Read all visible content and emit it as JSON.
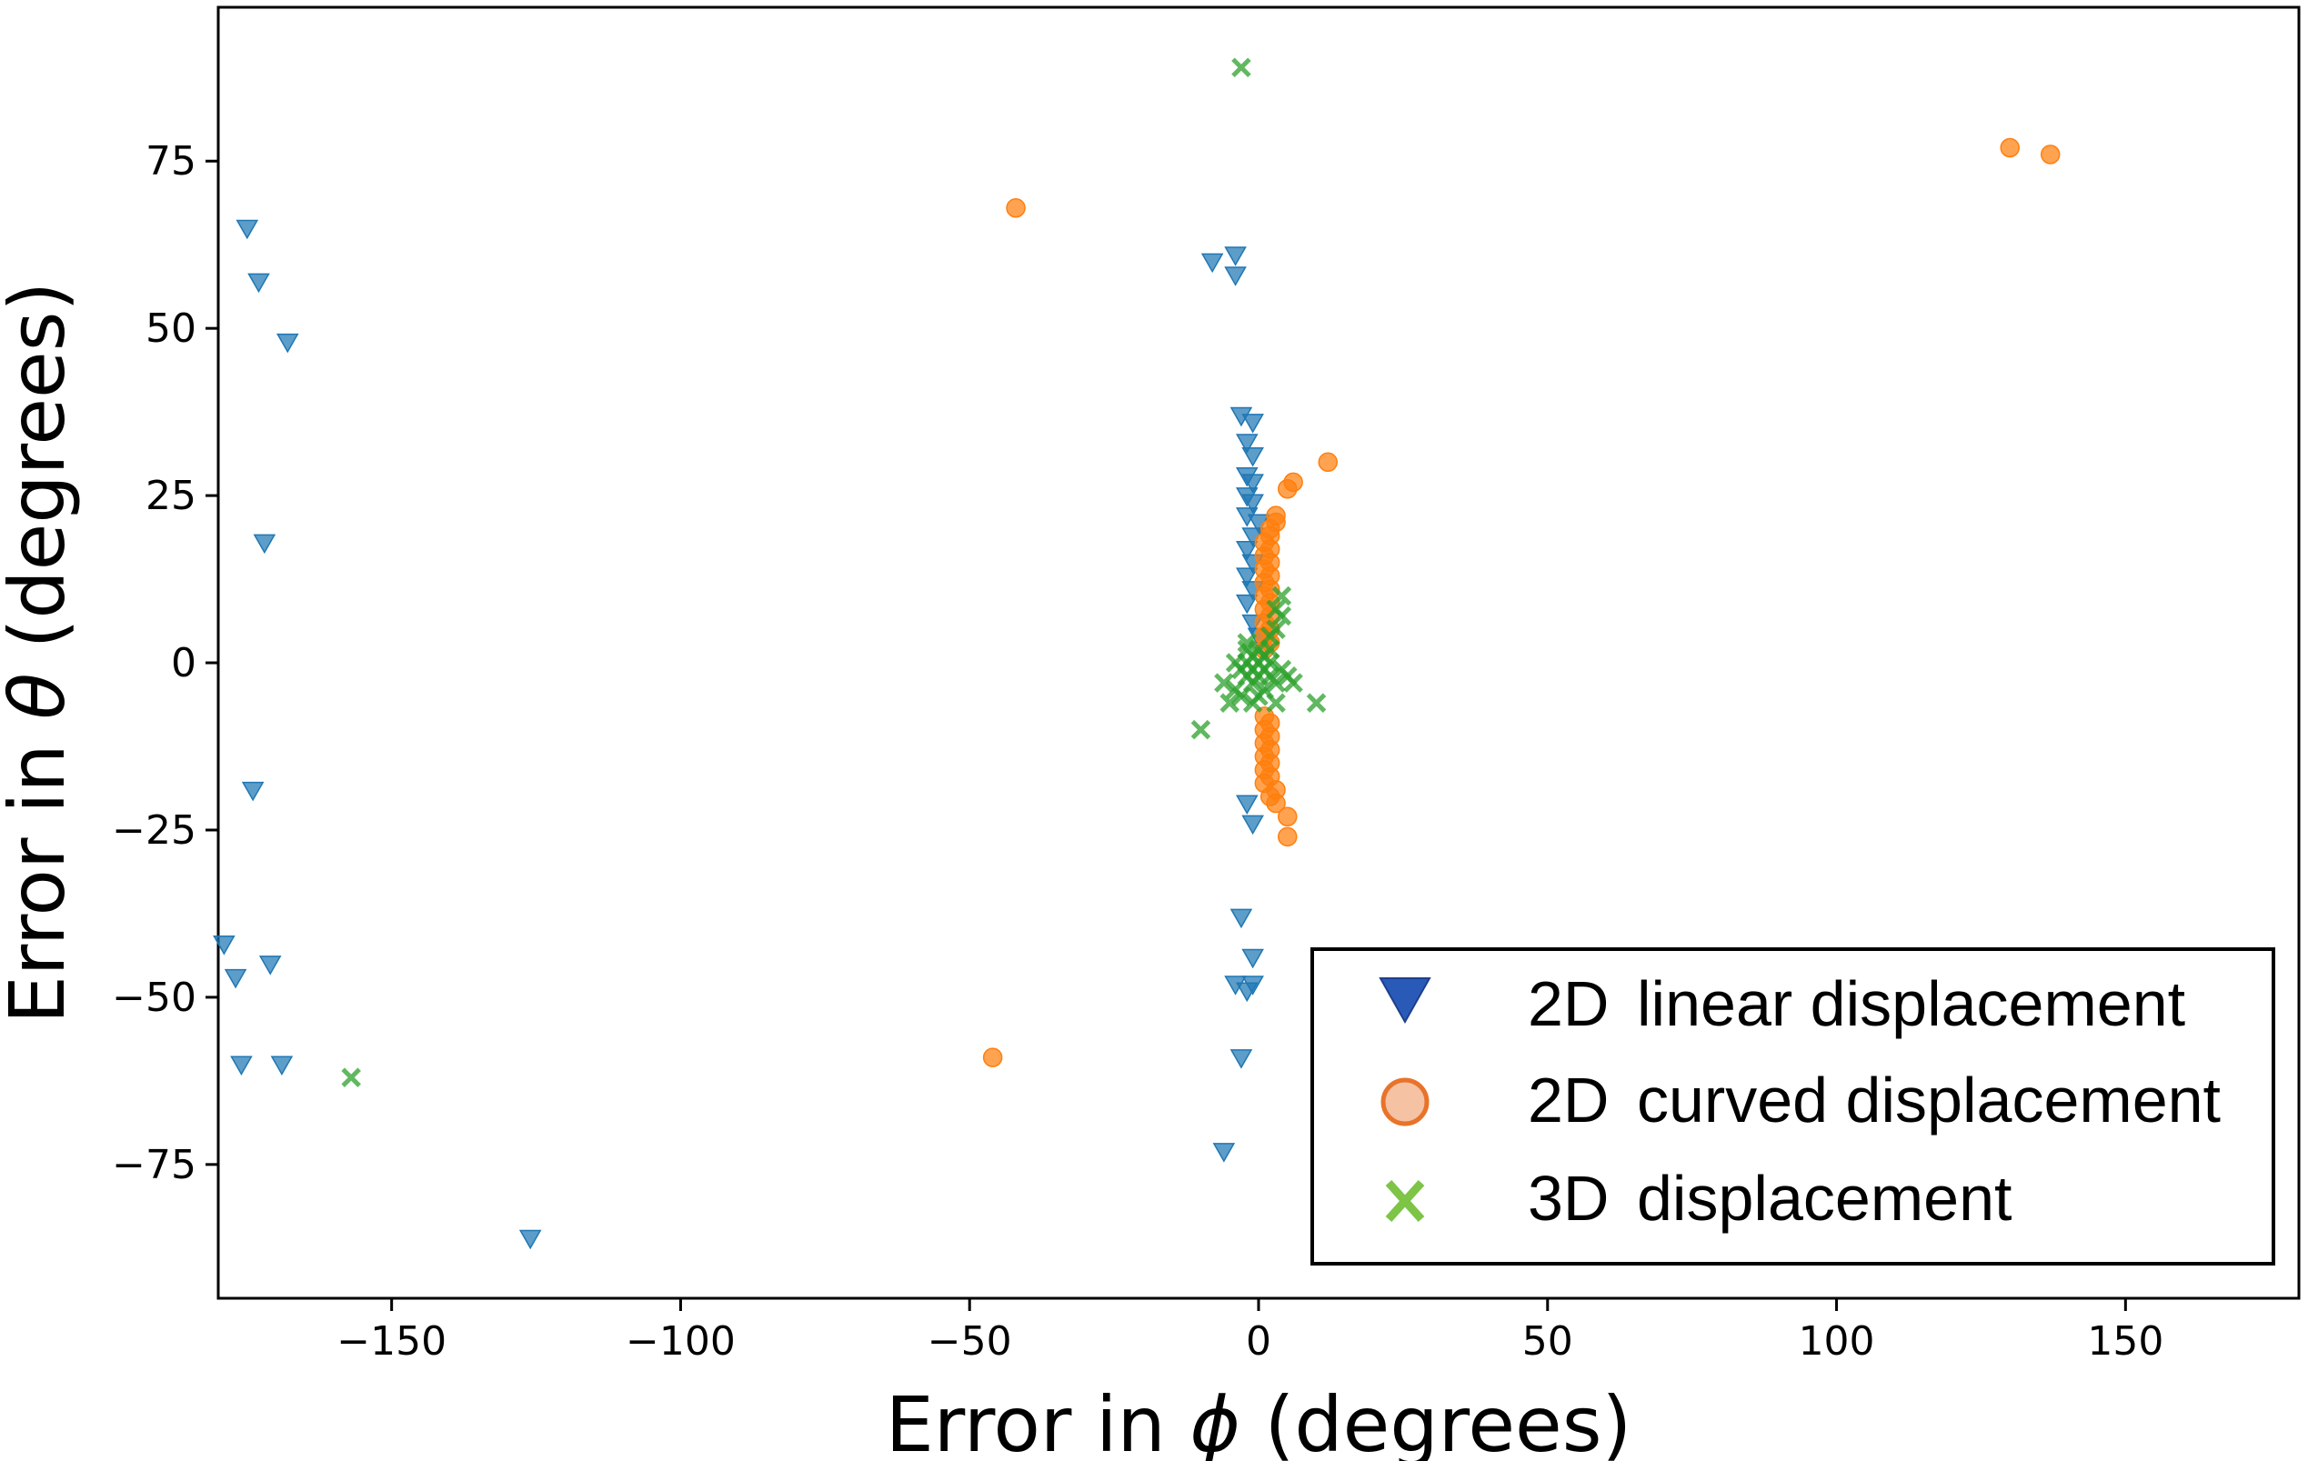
{
  "chart_data": {
    "type": "scatter",
    "title": "",
    "xlabel": {
      "prefix": "Error in ",
      "symbol": "ϕ",
      "suffix": " (degrees)"
    },
    "ylabel": {
      "prefix": "Error in ",
      "symbol": "θ",
      "suffix": " (degrees)"
    },
    "xlim": [
      -180,
      180
    ],
    "ylim": [
      -95,
      98
    ],
    "xticks": [
      {
        "value": -150,
        "label": "−150"
      },
      {
        "value": -100,
        "label": "−100"
      },
      {
        "value": -50,
        "label": "−50"
      },
      {
        "value": 0,
        "label": "0"
      },
      {
        "value": 50,
        "label": "50"
      },
      {
        "value": 100,
        "label": "100"
      },
      {
        "value": 150,
        "label": "150"
      }
    ],
    "yticks": [
      {
        "value": 75,
        "label": "75"
      },
      {
        "value": 50,
        "label": "50"
      },
      {
        "value": 25,
        "label": "25"
      },
      {
        "value": 0,
        "label": "0"
      },
      {
        "value": -25,
        "label": "−25"
      },
      {
        "value": -50,
        "label": "−50"
      },
      {
        "value": -75,
        "label": "−75"
      }
    ],
    "grid": false,
    "legend_position": "lower-right",
    "series": [
      {
        "name_prefix": "2D",
        "name": "linear displacement",
        "marker": "triangle-down",
        "color": "#1f77b4",
        "legend_color": "#2a5ab8",
        "points": [
          [
            -175,
            65
          ],
          [
            -173,
            57
          ],
          [
            -168,
            48
          ],
          [
            -172,
            18
          ],
          [
            -174,
            -19
          ],
          [
            -179,
            -42
          ],
          [
            -177,
            -47
          ],
          [
            -171,
            -45
          ],
          [
            -176,
            -60
          ],
          [
            -169,
            -60
          ],
          [
            -126,
            -86
          ],
          [
            -8,
            60
          ],
          [
            -4,
            61
          ],
          [
            -4,
            58
          ],
          [
            -3,
            37
          ],
          [
            -1,
            36
          ],
          [
            -2,
            33
          ],
          [
            -1,
            31
          ],
          [
            -2,
            28
          ],
          [
            -1,
            27
          ],
          [
            -2,
            25
          ],
          [
            -1,
            24
          ],
          [
            -2,
            22
          ],
          [
            0,
            21
          ],
          [
            -1,
            19
          ],
          [
            -2,
            17
          ],
          [
            -1,
            15
          ],
          [
            -2,
            13
          ],
          [
            -1,
            11
          ],
          [
            -2,
            9
          ],
          [
            -1,
            6
          ],
          [
            0,
            4
          ],
          [
            -2,
            -21
          ],
          [
            -1,
            -24
          ],
          [
            -3,
            -38
          ],
          [
            -1,
            -44
          ],
          [
            -4,
            -48
          ],
          [
            -2,
            -49
          ],
          [
            -1,
            -48
          ],
          [
            -3,
            -59
          ],
          [
            -6,
            -73
          ]
        ]
      },
      {
        "name_prefix": "2D",
        "name": "curved displacement",
        "marker": "circle",
        "color": "#ff7f0e",
        "legend_color": "#f5c2a3",
        "points": [
          [
            130,
            77
          ],
          [
            137,
            76
          ],
          [
            -42,
            68
          ],
          [
            -46,
            -59
          ],
          [
            12,
            30
          ],
          [
            6,
            27
          ],
          [
            5,
            26
          ],
          [
            3,
            22
          ],
          [
            3,
            21
          ],
          [
            2,
            20
          ],
          [
            2,
            19
          ],
          [
            1,
            18
          ],
          [
            2,
            17
          ],
          [
            1,
            16
          ],
          [
            2,
            15
          ],
          [
            1,
            14
          ],
          [
            2,
            13
          ],
          [
            1,
            12
          ],
          [
            2,
            11
          ],
          [
            1,
            10
          ],
          [
            2,
            9
          ],
          [
            1,
            8
          ],
          [
            2,
            7
          ],
          [
            1,
            6
          ],
          [
            2,
            5
          ],
          [
            1,
            4
          ],
          [
            2,
            3
          ],
          [
            1,
            2
          ],
          [
            1,
            -8
          ],
          [
            2,
            -9
          ],
          [
            1,
            -10
          ],
          [
            2,
            -11
          ],
          [
            1,
            -12
          ],
          [
            2,
            -13
          ],
          [
            1,
            -14
          ],
          [
            2,
            -15
          ],
          [
            1,
            -16
          ],
          [
            2,
            -17
          ],
          [
            1,
            -18
          ],
          [
            3,
            -19
          ],
          [
            2,
            -20
          ],
          [
            3,
            -21
          ],
          [
            5,
            -23
          ],
          [
            5,
            -26
          ]
        ]
      },
      {
        "name_prefix": "3D",
        "name": "displacement",
        "marker": "x",
        "color": "#2ca02c",
        "legend_color": "#7dc447",
        "points": [
          [
            -3,
            89
          ],
          [
            -157,
            -62
          ],
          [
            4,
            10
          ],
          [
            3,
            8
          ],
          [
            4,
            7
          ],
          [
            3,
            5
          ],
          [
            2,
            4
          ],
          [
            -10,
            -10
          ],
          [
            -5,
            -6
          ],
          [
            -4,
            -4
          ],
          [
            -6,
            -3
          ],
          [
            -3,
            -5
          ],
          [
            -3,
            -1
          ],
          [
            -2,
            0
          ],
          [
            -1,
            1
          ],
          [
            -1,
            -1
          ],
          [
            0,
            0
          ],
          [
            1,
            1
          ],
          [
            1,
            -1
          ],
          [
            2,
            0
          ],
          [
            0,
            2
          ],
          [
            0,
            -2
          ],
          [
            -2,
            -2
          ],
          [
            2,
            -2
          ],
          [
            3,
            -3
          ],
          [
            -1,
            -3
          ],
          [
            1,
            -4
          ],
          [
            0,
            -5
          ],
          [
            -2,
            2
          ],
          [
            2,
            2
          ],
          [
            4,
            -1
          ],
          [
            -4,
            0
          ],
          [
            -1,
            -6
          ],
          [
            3,
            -6
          ],
          [
            5,
            -2
          ],
          [
            6,
            -3
          ],
          [
            10,
            -6
          ],
          [
            -2,
            3
          ]
        ]
      }
    ]
  }
}
